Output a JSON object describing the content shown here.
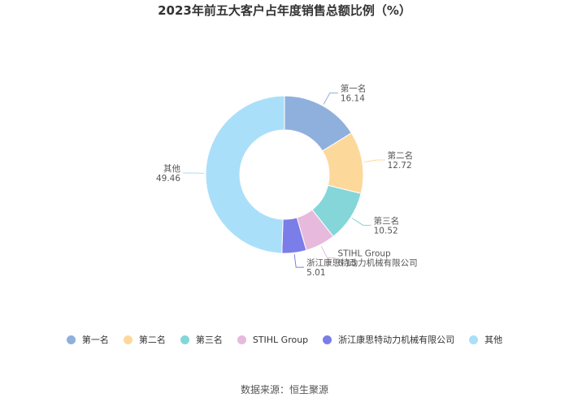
{
  "chart_data": {
    "type": "pie",
    "title": "2023年前五大客户占年度销售总额比例（%）",
    "categories": [
      "第一名",
      "第二名",
      "第三名",
      "STIHL Group",
      "浙江康思特动力机械有限公司",
      "其他"
    ],
    "values": [
      16.14,
      12.72,
      10.52,
      6.15,
      5.01,
      49.46
    ],
    "value_labels": [
      "16.14",
      "12.72",
      "10.52",
      "6.15",
      "5.01",
      "49.46"
    ],
    "colors": [
      "#8fb0dc",
      "#fdd89b",
      "#84d6d8",
      "#e7b9dc",
      "#7b7de8",
      "#aadff9"
    ],
    "donut": true,
    "legend_position": "bottom"
  },
  "source": "数据来源：恒生聚源"
}
